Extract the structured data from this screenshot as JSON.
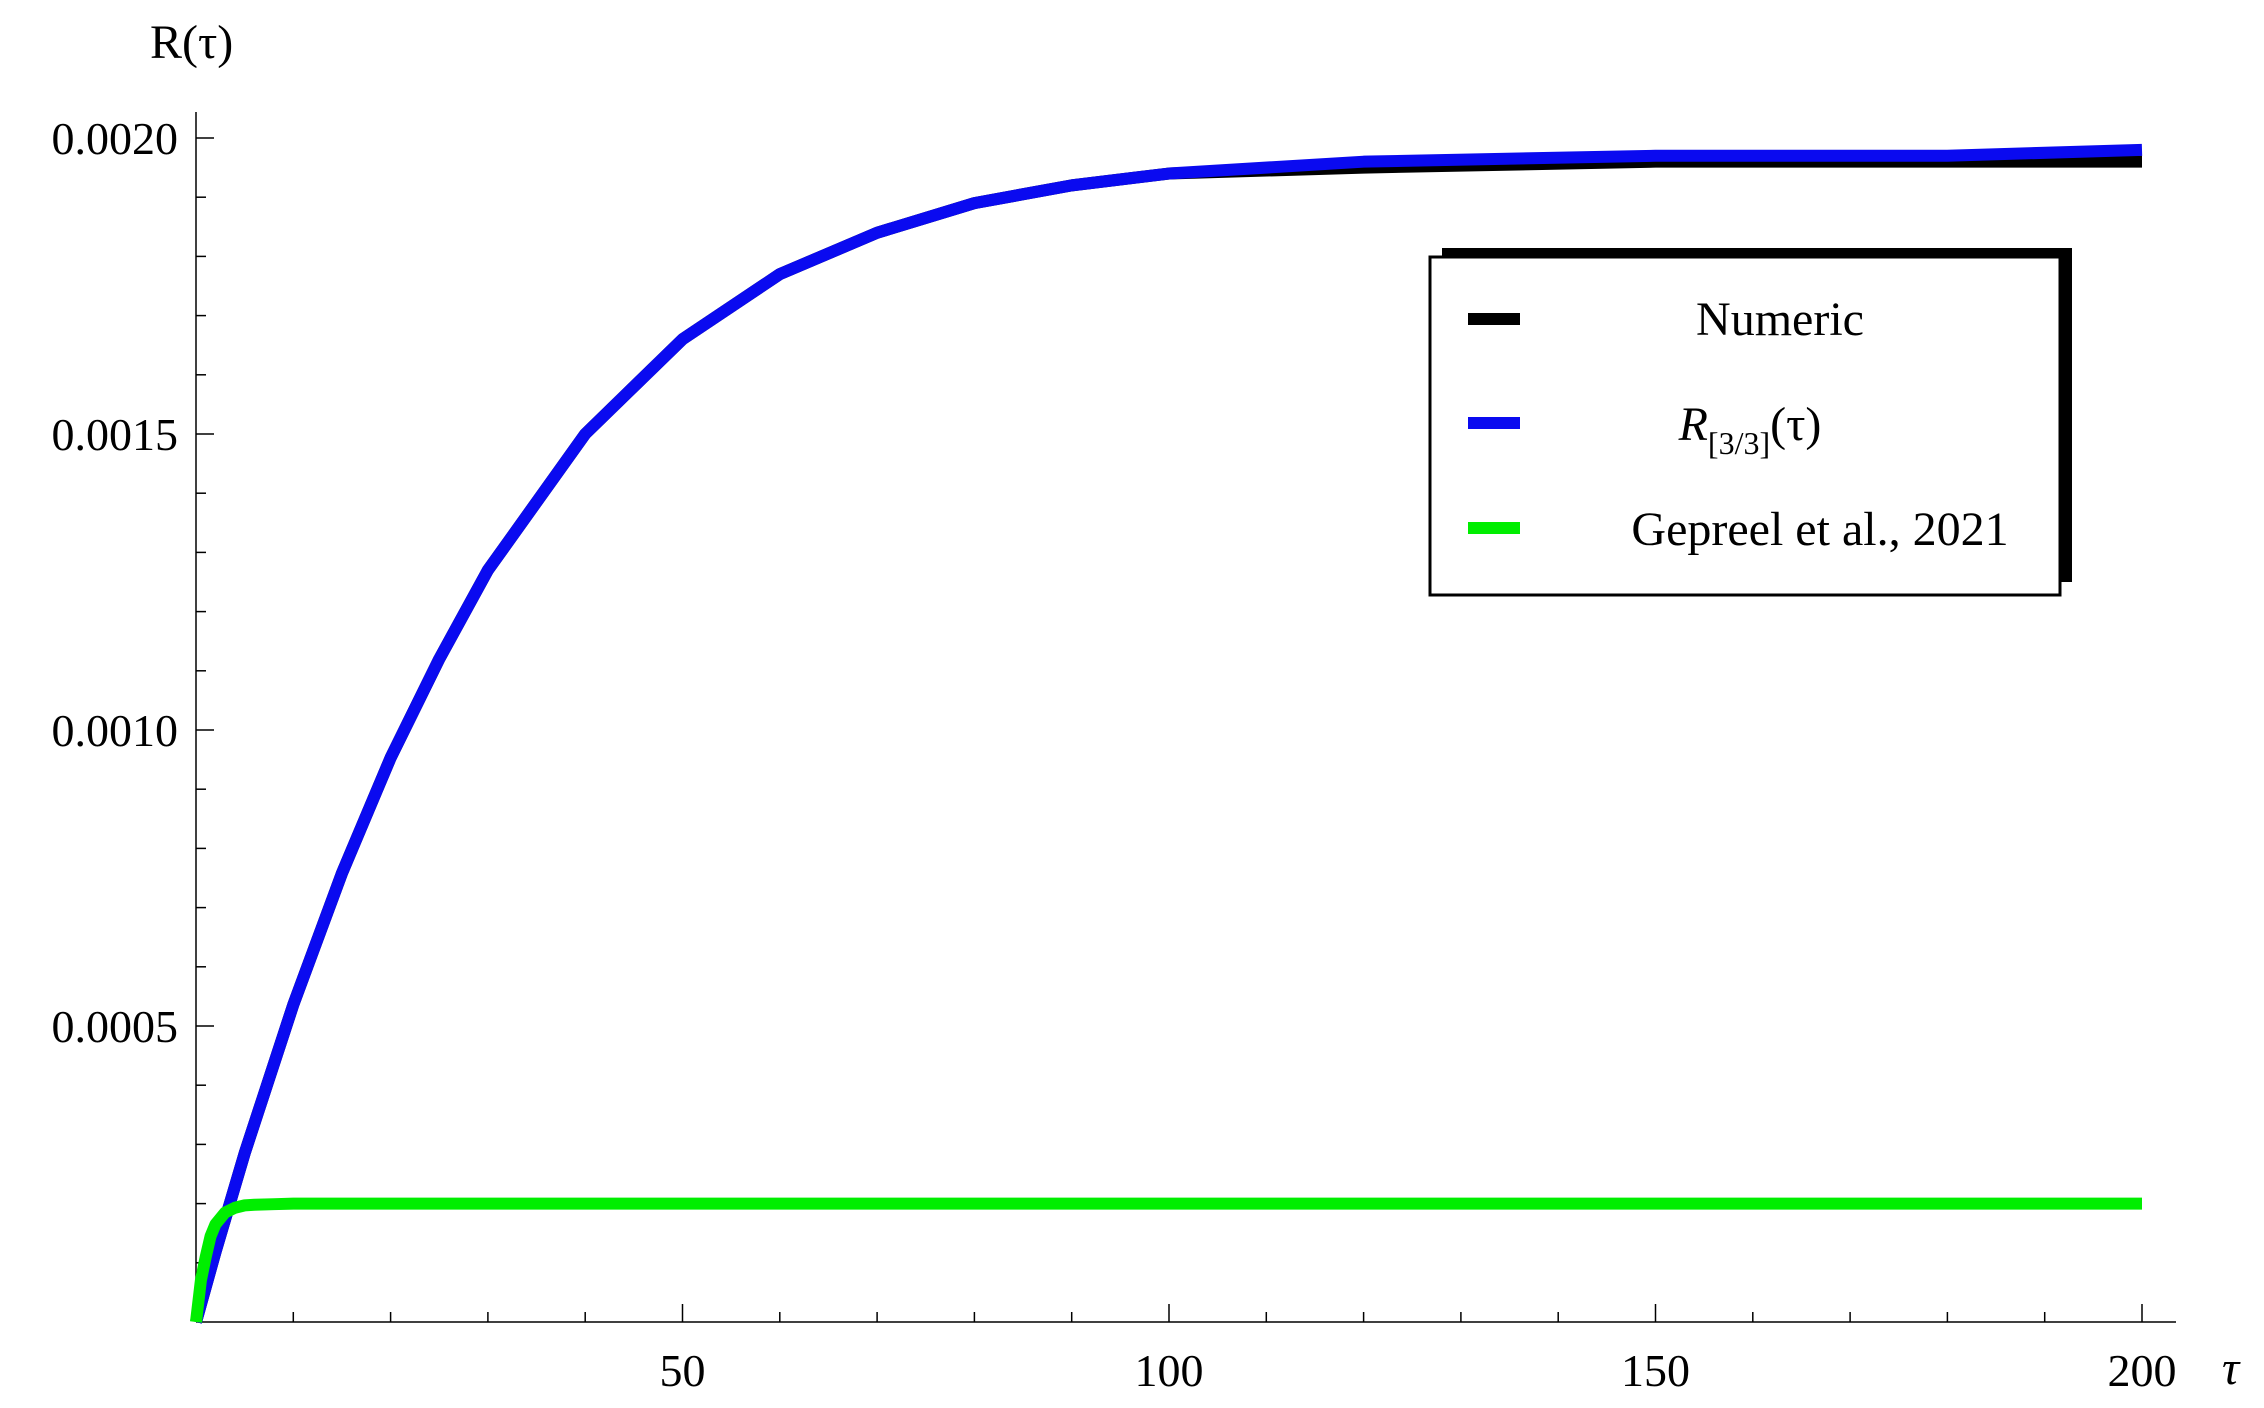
{
  "chart_data": {
    "type": "line",
    "title": "",
    "xlabel": "τ",
    "ylabel": "R(τ)",
    "xlim": [
      0,
      200
    ],
    "ylim": [
      0,
      0.002
    ],
    "grid": false,
    "x_ticks": [
      50,
      100,
      150,
      200
    ],
    "x_tick_labels": [
      "50",
      "100",
      "150",
      "200"
    ],
    "y_ticks": [
      0.0005,
      0.001,
      0.0015,
      0.002
    ],
    "y_tick_labels": [
      "0.0005",
      "0.0010",
      "0.0015",
      "0.0020"
    ],
    "legend_placement": "top-right",
    "colors": {
      "numeric": "#000000",
      "pade": "#0a0af0",
      "gepreel": "#00ee00"
    },
    "series": [
      {
        "name": "Numeric",
        "x": [
          0,
          2,
          5,
          10,
          15,
          20,
          25,
          30,
          40,
          50,
          60,
          70,
          80,
          90,
          100,
          120,
          150,
          180,
          200
        ],
        "values": [
          0,
          0.000118,
          0.000285,
          0.000536,
          0.000758,
          0.000953,
          0.00112,
          0.00127,
          0.0015,
          0.00166,
          0.00177,
          0.00184,
          0.00189,
          0.00192,
          0.00194,
          0.00195,
          0.00196,
          0.00196,
          0.00196
        ]
      },
      {
        "name": "R_{[3/3]}(τ)",
        "name_parts": {
          "base": "R",
          "sub": "[3/3]",
          "arg": "(τ)"
        },
        "x": [
          0,
          2,
          5,
          10,
          15,
          20,
          25,
          30,
          40,
          50,
          60,
          70,
          80,
          90,
          100,
          120,
          150,
          180,
          200
        ],
        "values": [
          0,
          0.000118,
          0.000285,
          0.000536,
          0.000758,
          0.000953,
          0.00112,
          0.00127,
          0.0015,
          0.00166,
          0.00177,
          0.00184,
          0.00189,
          0.00192,
          0.00194,
          0.00196,
          0.00197,
          0.00197,
          0.00198
        ]
      },
      {
        "name": "Gepreel et al., 2021",
        "x": [
          0,
          0.5,
          1,
          1.5,
          2,
          3,
          4,
          5,
          6,
          8,
          10,
          50,
          100,
          150,
          200
        ],
        "values": [
          0,
          7e-05,
          0.00011,
          0.000145,
          0.000165,
          0.000185,
          0.000193,
          0.000197,
          0.000198,
          0.000199,
          0.0002,
          0.0002,
          0.0002,
          0.0002,
          0.0002
        ]
      }
    ]
  }
}
